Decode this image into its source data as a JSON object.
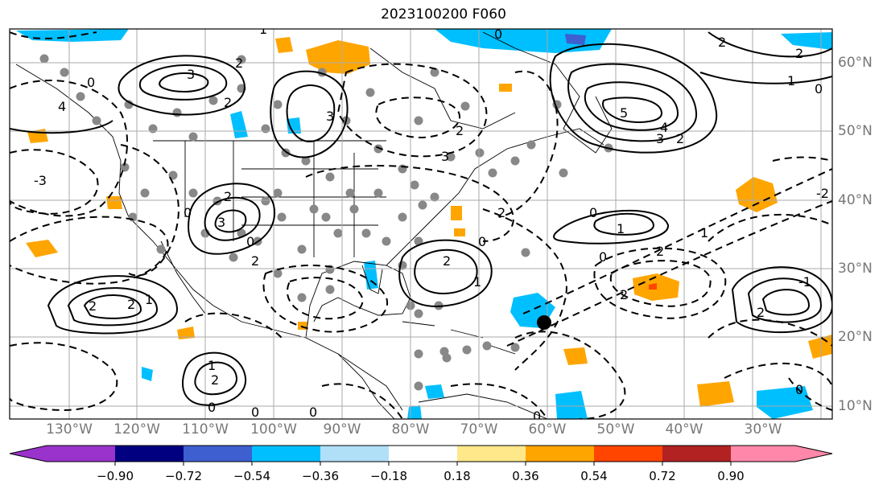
{
  "title": "2023100200 F060",
  "lon_labels": [
    "130°W",
    "120°W",
    "110°W",
    "100°W",
    "90°W",
    "80°W",
    "70°W",
    "60°W",
    "50°W",
    "40°W",
    "30°W"
  ],
  "lat_labels": [
    "60°N",
    "50°N",
    "40°N",
    "30°N",
    "20°N",
    "10°N"
  ],
  "colorbar": {
    "ticks": [
      "−0.90",
      "−0.72",
      "−0.54",
      "−0.36",
      "−0.18",
      "0.18",
      "0.36",
      "0.54",
      "0.72",
      "0.90"
    ],
    "colors": [
      "#9933cc",
      "#000080",
      "#3d5fcf",
      "#00bfff",
      "#b0e0f8",
      "#ffffff",
      "#ffe88a",
      "#ffa500",
      "#ff4500",
      "#b22222",
      "#ff88aa"
    ]
  },
  "contour_labels": [
    "3",
    "2",
    "1",
    "0",
    "-1",
    "-2",
    "-3",
    "5",
    "4"
  ],
  "colors": {
    "cyan": "#00bfff",
    "orange": "#ffa500",
    "red": "#ff4500",
    "blue": "#3d5fcf",
    "dot": "#888888"
  }
}
